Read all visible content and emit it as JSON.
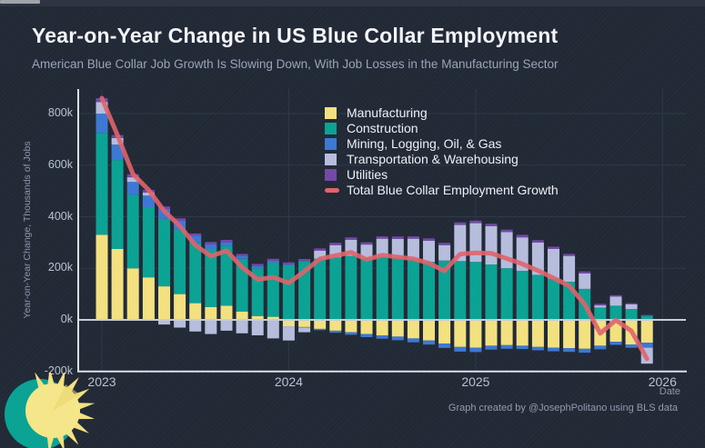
{
  "header": {
    "title": "Year-on-Year Change in US Blue Collar Employment",
    "subtitle": "American Blue Collar Job Growth Is Slowing Down, With Job Losses in the Manufacturing Sector"
  },
  "footer": {
    "attribution": "Graph created by @JosephPolitano using BLS data"
  },
  "colors": {
    "background": "#222936",
    "manufacturing": "#f3e180",
    "construction": "#0aa294",
    "mining": "#3b78d4",
    "transportation": "#b6bcdc",
    "utilities": "#7149a5",
    "total_line": "#e0626a",
    "grid": "#2e3846",
    "axis_frame": "#dbe0e9",
    "zero_line": "#c6cdd9",
    "logo_sun": "#f3e180",
    "logo_crescent": "#0aa294"
  },
  "chart_data": {
    "type": "bar",
    "stacked": true,
    "title": "Year-on-Year Change in US Blue Collar Employment",
    "subtitle": "American Blue Collar Job Growth Is Slowing Down, With Job Losses in the Manufacturing Sector",
    "xlabel": "Date",
    "ylabel": "Year-on-Year Change, Thousands of Jobs",
    "unit": "thousands of jobs",
    "grid": true,
    "legend_position": "top-center",
    "ylim": [
      -250,
      900
    ],
    "yticks": [
      "800k",
      "600k",
      "400k",
      "200k",
      "0k",
      "-200k"
    ],
    "ytick_values": [
      800,
      600,
      400,
      200,
      0,
      -200
    ],
    "xticks": [
      "2023",
      "2024",
      "2025",
      "2026"
    ],
    "months": [
      "2023-01",
      "2023-02",
      "2023-03",
      "2023-04",
      "2023-05",
      "2023-06",
      "2023-07",
      "2023-08",
      "2023-09",
      "2023-10",
      "2023-11",
      "2023-12",
      "2024-01",
      "2024-02",
      "2024-03",
      "2024-04",
      "2024-05",
      "2024-06",
      "2024-07",
      "2024-08",
      "2024-09",
      "2024-10",
      "2024-11",
      "2024-12",
      "2025-01",
      "2025-02",
      "2025-03",
      "2025-04",
      "2025-05",
      "2025-06",
      "2025-07",
      "2025-08",
      "2025-09",
      "2025-10",
      "2025-11",
      "2025-12"
    ],
    "series": [
      {
        "name": "Manufacturing",
        "color": "#f3e180",
        "values": [
          330,
          275,
          200,
          165,
          130,
          100,
          65,
          50,
          55,
          32,
          15,
          12,
          -25,
          -28,
          -35,
          -42,
          -48,
          -55,
          -60,
          -65,
          -72,
          -80,
          -92,
          -105,
          -108,
          -100,
          -98,
          -100,
          -105,
          -108,
          -110,
          -112,
          -100,
          -85,
          -95,
          -88
        ]
      },
      {
        "name": "Construction",
        "color": "#0aa294",
        "values": [
          395,
          345,
          285,
          272,
          262,
          252,
          235,
          225,
          232,
          205,
          185,
          210,
          212,
          228,
          238,
          242,
          248,
          240,
          245,
          242,
          235,
          225,
          230,
          228,
          225,
          215,
          200,
          190,
          175,
          160,
          148,
          120,
          48,
          55,
          42,
          15
        ]
      },
      {
        "name": "Mining, Logging, Oil, & Gas",
        "color": "#3b78d4",
        "values": [
          75,
          60,
          50,
          45,
          38,
          32,
          26,
          18,
          14,
          11,
          9,
          7,
          3,
          -2,
          -5,
          -8,
          -10,
          -12,
          -13,
          -14,
          -15,
          -16,
          -17,
          -18,
          -17,
          -15,
          -14,
          -13,
          -13,
          -14,
          -14,
          -15,
          -14,
          -12,
          -13,
          -20
        ]
      },
      {
        "name": "Transportation & Warehousing",
        "color": "#b6bcdc",
        "values": [
          45,
          25,
          18,
          12,
          -18,
          -30,
          -45,
          -55,
          -42,
          -52,
          -60,
          -72,
          -55,
          -18,
          30,
          48,
          62,
          52,
          70,
          72,
          80,
          82,
          60,
          140,
          150,
          148,
          140,
          130,
          125,
          115,
          100,
          60,
          8,
          35,
          18,
          -62
        ]
      },
      {
        "name": "Utilities",
        "color": "#7149a5",
        "values": [
          15,
          12,
          12,
          10,
          10,
          10,
          9,
          9,
          9,
          8,
          8,
          8,
          8,
          8,
          9,
          9,
          10,
          9,
          9,
          9,
          9,
          9,
          9,
          10,
          10,
          10,
          10,
          10,
          9,
          9,
          8,
          8,
          6,
          6,
          5,
          4
        ]
      }
    ],
    "line_series": {
      "name": "Total Blue Collar Employment Growth",
      "color": "#e0626a",
      "values": [
        860,
        717,
        565,
        504,
        422,
        364,
        290,
        247,
        268,
        204,
        157,
        165,
        143,
        188,
        237,
        249,
        262,
        234,
        251,
        244,
        237,
        220,
        190,
        255,
        260,
        258,
        238,
        217,
        191,
        162,
        132,
        61,
        -52,
        -1,
        -43,
        -151
      ]
    }
  }
}
